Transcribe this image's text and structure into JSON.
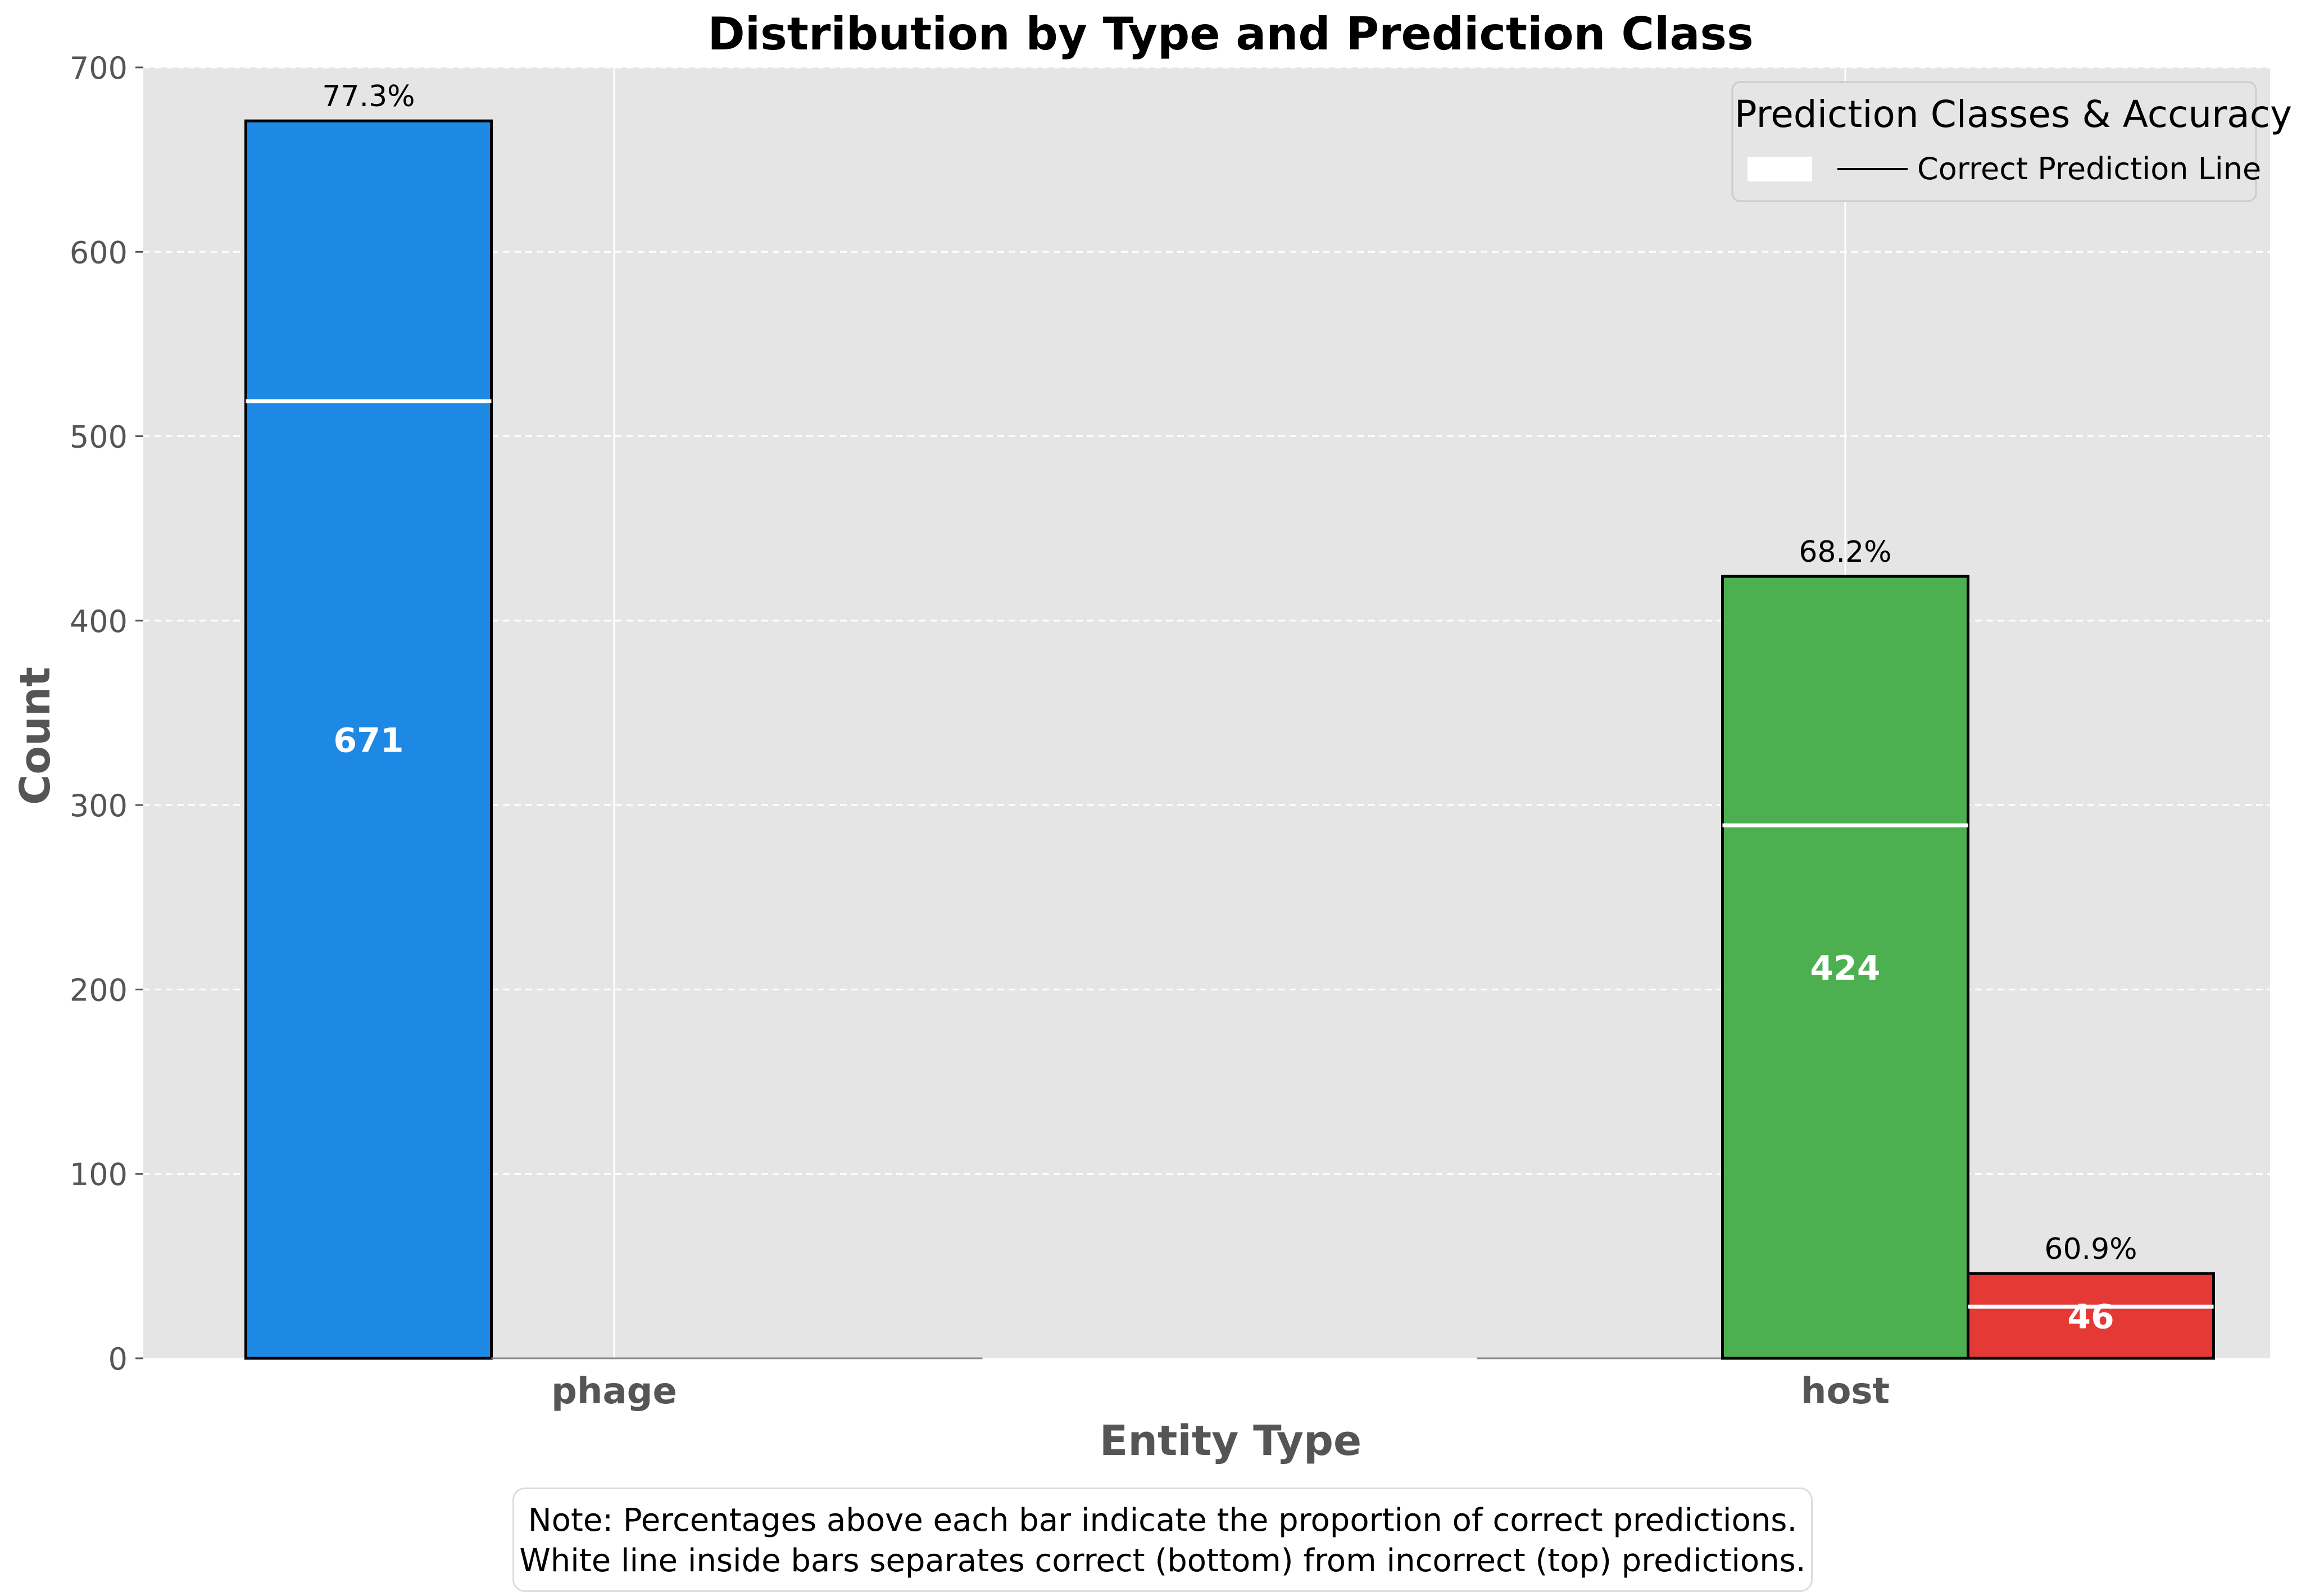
{
  "chart_data": {
    "type": "bar",
    "title": "Distribution by Type and Prediction Class",
    "xlabel": "Entity Type",
    "ylabel": "Count",
    "categories": [
      "phage",
      "host"
    ],
    "ylim": [
      0,
      700
    ],
    "yticks": [
      0,
      100,
      200,
      300,
      400,
      500,
      600,
      700
    ],
    "grid": true,
    "series": [
      {
        "values": [
          671,
          0
        ],
        "correct": [
          519,
          0
        ],
        "accuracy_labels": [
          "77.3%",
          ""
        ],
        "color": "#1e88e5"
      },
      {
        "values": [
          0,
          424
        ],
        "correct": [
          0,
          289
        ],
        "accuracy_labels": [
          "",
          "68.2%"
        ],
        "color": "#4caf50"
      },
      {
        "values": [
          0,
          46
        ],
        "correct": [
          0,
          28
        ],
        "accuracy_labels": [
          "",
          "60.9%"
        ],
        "color": "#e53935"
      }
    ],
    "legend": {
      "title": "Prediction Classes & Accuracy",
      "entries": [
        "Correct Prediction Line"
      ],
      "placement": "top-right"
    },
    "note": [
      "Note: Percentages above each bar indicate the proportion of correct predictions.",
      "White line inside bars separates correct (bottom) from incorrect (top) predictions."
    ]
  }
}
